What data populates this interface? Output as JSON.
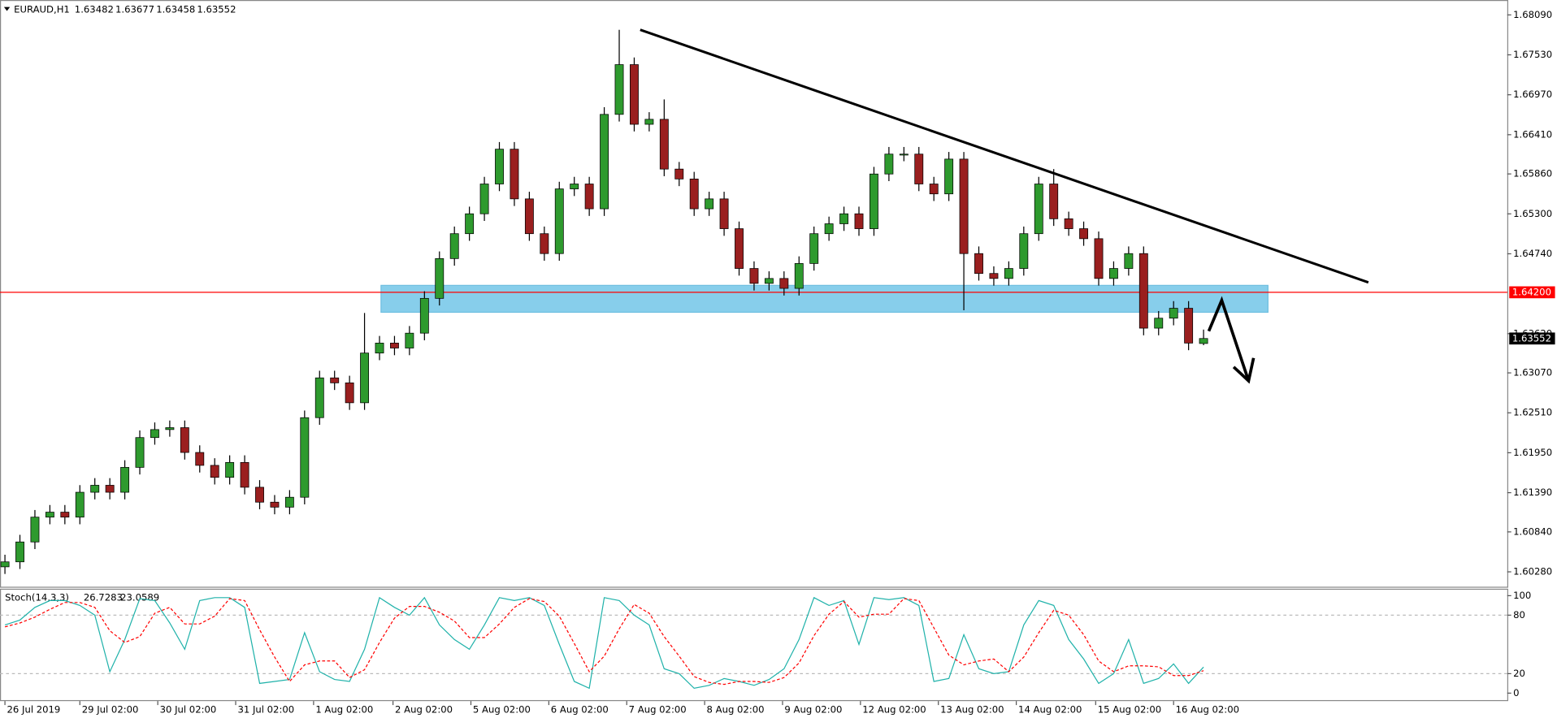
{
  "chart_data": [
    {
      "type": "candlestick",
      "title": "EURAUD,H1",
      "xlim": [
        -0.33,
        100.27
      ],
      "xticks": [
        {
          "value": 0,
          "label": "26 Jul 2019"
        },
        {
          "value": 5,
          "label": "29 Jul 02:00"
        },
        {
          "value": 10.2,
          "label": "30 Jul 02:00"
        },
        {
          "value": 15.4,
          "label": "31 Jul 02:00"
        },
        {
          "value": 20.6,
          "label": "1 Aug 02:00"
        },
        {
          "value": 25.9,
          "label": "2 Aug 02:00"
        },
        {
          "value": 31.1,
          "label": "5 Aug 02:00"
        },
        {
          "value": 36.3,
          "label": "6 Aug 02:00"
        },
        {
          "value": 41.5,
          "label": "7 Aug 02:00"
        },
        {
          "value": 46.7,
          "label": "8 Aug 02:00"
        },
        {
          "value": 51.9,
          "label": "9 Aug 02:00"
        },
        {
          "value": 57.1,
          "label": "12 Aug 02:00"
        },
        {
          "value": 62.3,
          "label": "13 Aug 02:00"
        },
        {
          "value": 67.5,
          "label": "14 Aug 02:00"
        },
        {
          "value": 72.8,
          "label": "15 Aug 02:00"
        },
        {
          "value": 78,
          "label": "16 Aug 02:00"
        }
      ],
      "ylim": [
        1.60071,
        1.68299
      ],
      "yticks": [
        {
          "value": 1.6809,
          "label": "1.68090"
        },
        {
          "value": 1.6753,
          "label": "1.67530"
        },
        {
          "value": 1.6697,
          "label": "1.66970"
        },
        {
          "value": 1.6641,
          "label": "1.66410"
        },
        {
          "value": 1.6586,
          "label": "1.65860"
        },
        {
          "value": 1.653,
          "label": "1.65300"
        },
        {
          "value": 1.6474,
          "label": "1.64740"
        },
        {
          "value": 1.6362,
          "label": "1.63620"
        },
        {
          "value": 1.6307,
          "label": "1.63070"
        },
        {
          "value": 1.6251,
          "label": "1.62510"
        },
        {
          "value": 1.6195,
          "label": "1.61950"
        },
        {
          "value": 1.6139,
          "label": "1.61390"
        },
        {
          "value": 1.6084,
          "label": "1.60840"
        },
        {
          "value": 1.6028,
          "label": "1.60280"
        }
      ],
      "open": [
        1.6035,
        1.6042,
        1.60699,
        1.61047,
        1.61117,
        1.61047,
        1.61396,
        1.61494,
        1.61396,
        1.61745,
        1.62163,
        1.62275,
        1.62302,
        1.61954,
        1.61773,
        1.61605,
        1.61814,
        1.61466,
        1.61257,
        1.61187,
        1.61326,
        1.62442,
        1.63,
        1.6293,
        1.62651,
        1.63348,
        1.63488,
        1.63418,
        1.63627,
        1.64115,
        1.64673,
        1.65022,
        1.65301,
        1.65719,
        1.66207,
        1.6551,
        1.65022,
        1.64743,
        1.6565,
        1.65719,
        1.65371,
        1.66695,
        1.67393,
        1.66556,
        1.66626,
        1.65928,
        1.65789,
        1.65371,
        1.6551,
        1.65092,
        1.64534,
        1.64325,
        1.64394,
        1.64255,
        1.64604,
        1.65022,
        1.65161,
        1.65301,
        1.65092,
        1.65859,
        1.66138,
        1.66138,
        1.65719,
        1.6558,
        1.66068,
        1.64743,
        1.64464,
        1.64394,
        1.64534,
        1.65022,
        1.65719,
        1.65231,
        1.65092,
        1.64952,
        1.64394,
        1.64534,
        1.64743,
        1.63697,
        1.63837,
        1.63976,
        1.63482
      ],
      "high": [
        1.6052,
        1.60799,
        1.61147,
        1.61217,
        1.61217,
        1.61496,
        1.61594,
        1.61594,
        1.61845,
        1.62263,
        1.62375,
        1.62402,
        1.62402,
        1.62054,
        1.61873,
        1.61914,
        1.61914,
        1.61566,
        1.61357,
        1.61426,
        1.62542,
        1.631,
        1.631,
        1.6303,
        1.6391,
        1.63588,
        1.63588,
        1.63727,
        1.64215,
        1.64773,
        1.65122,
        1.65401,
        1.65819,
        1.66307,
        1.66307,
        1.6561,
        1.65122,
        1.6575,
        1.65819,
        1.65819,
        1.66795,
        1.67881,
        1.67493,
        1.66726,
        1.66905,
        1.66028,
        1.65889,
        1.6561,
        1.6561,
        1.65192,
        1.64634,
        1.64494,
        1.64494,
        1.64704,
        1.65122,
        1.65261,
        1.65401,
        1.65401,
        1.65959,
        1.66238,
        1.66238,
        1.66238,
        1.65819,
        1.66168,
        1.66168,
        1.64843,
        1.64564,
        1.64634,
        1.65122,
        1.65819,
        1.65928,
        1.65331,
        1.65192,
        1.65052,
        1.64634,
        1.64843,
        1.64843,
        1.63937,
        1.64076,
        1.64076,
        1.63677
      ],
      "low": [
        1.6025,
        1.6032,
        1.60599,
        1.60947,
        1.60947,
        1.60947,
        1.61296,
        1.61296,
        1.61296,
        1.61645,
        1.62063,
        1.62175,
        1.61854,
        1.61673,
        1.61505,
        1.61505,
        1.61366,
        1.61157,
        1.61087,
        1.61087,
        1.61226,
        1.62342,
        1.6283,
        1.62551,
        1.62551,
        1.63248,
        1.63318,
        1.63318,
        1.63527,
        1.64015,
        1.64573,
        1.64922,
        1.65201,
        1.65619,
        1.6541,
        1.64922,
        1.64643,
        1.64643,
        1.6555,
        1.65271,
        1.65271,
        1.66595,
        1.66456,
        1.66456,
        1.65828,
        1.65689,
        1.65271,
        1.65271,
        1.64992,
        1.64434,
        1.64225,
        1.64225,
        1.64155,
        1.64155,
        1.64504,
        1.64922,
        1.65061,
        1.64992,
        1.64992,
        1.65759,
        1.66038,
        1.65619,
        1.6548,
        1.6548,
        1.63948,
        1.64364,
        1.64294,
        1.64294,
        1.64434,
        1.64922,
        1.65131,
        1.64992,
        1.64852,
        1.64294,
        1.64294,
        1.64434,
        1.63597,
        1.63597,
        1.63737,
        1.63388,
        1.63458
      ],
      "close": [
        1.6042,
        1.60699,
        1.61047,
        1.61117,
        1.61047,
        1.61396,
        1.61494,
        1.61396,
        1.61745,
        1.62163,
        1.62275,
        1.62302,
        1.61954,
        1.61773,
        1.61605,
        1.61814,
        1.61466,
        1.61257,
        1.61187,
        1.61326,
        1.62442,
        1.63,
        1.6293,
        1.62651,
        1.63348,
        1.63488,
        1.63418,
        1.63627,
        1.64115,
        1.64673,
        1.65022,
        1.65301,
        1.65719,
        1.66207,
        1.6551,
        1.65022,
        1.64743,
        1.6565,
        1.65719,
        1.65371,
        1.66695,
        1.67393,
        1.66556,
        1.66626,
        1.65928,
        1.65789,
        1.65371,
        1.6551,
        1.65092,
        1.64534,
        1.64325,
        1.64394,
        1.64255,
        1.64604,
        1.65022,
        1.65161,
        1.65301,
        1.65092,
        1.65859,
        1.66138,
        1.66138,
        1.65719,
        1.6558,
        1.66068,
        1.64743,
        1.64464,
        1.64394,
        1.64534,
        1.65022,
        1.65719,
        1.65231,
        1.65092,
        1.64952,
        1.64394,
        1.64534,
        1.64743,
        1.63697,
        1.63837,
        1.63976,
        1.63488,
        1.63552
      ],
      "up_color": "#2e9a2e",
      "down_color": "#9a1f1f",
      "hline": {
        "value": 1.642,
        "label": "1.64200",
        "color": "#ff0000"
      },
      "trendline": {
        "x": [
          42.4,
          91
        ],
        "y": [
          1.67881,
          1.64339
        ],
        "color": "#000000"
      },
      "zone": {
        "x": [
          25.1,
          84.3
        ],
        "y": [
          1.6392,
          1.64297
        ],
        "color": "#87ceeb"
      }
    },
    {
      "type": "line",
      "title": "Stoch(14,3,3)",
      "xlim": [
        -0.33,
        100.27
      ],
      "ylim": [
        0,
        100
      ],
      "yticks": [
        0,
        20,
        80,
        100
      ],
      "series": [
        {
          "color": "#20b2aa",
          "values": [
            70,
            75,
            88,
            95,
            95,
            90,
            80,
            22,
            55,
            97,
            95,
            72,
            45,
            95,
            98,
            98,
            88,
            10,
            12,
            14,
            62,
            22,
            14,
            12,
            45,
            98,
            88,
            80,
            98,
            70,
            55,
            45,
            70,
            98,
            95,
            98,
            90,
            50,
            12,
            5,
            98,
            95,
            80,
            70,
            25,
            20,
            5,
            8,
            15,
            12,
            8,
            14,
            25,
            55,
            98,
            90,
            95,
            50,
            98,
            96,
            98,
            90,
            12,
            15,
            60,
            25,
            20,
            22,
            70,
            95,
            90,
            55,
            35,
            10,
            20,
            55,
            10,
            15,
            30,
            10,
            26.7283
          ]
        },
        {
          "color": "#ff0000",
          "dash": true,
          "values": [
            68,
            72,
            78,
            86,
            93,
            93,
            88,
            64,
            52,
            58,
            82,
            88,
            71,
            71,
            79,
            97,
            95,
            65,
            37,
            12,
            29,
            33,
            33,
            16,
            24,
            52,
            77,
            89,
            89,
            83,
            74,
            57,
            57,
            71,
            88,
            97,
            94,
            79,
            51,
            22,
            38,
            66,
            91,
            82,
            58,
            38,
            17,
            11,
            9,
            12,
            12,
            11,
            16,
            31,
            59,
            81,
            94,
            78,
            81,
            81,
            97,
            95,
            67,
            39,
            29,
            33,
            35,
            22,
            37,
            62,
            85,
            80,
            60,
            33,
            22,
            28,
            28,
            27,
            18,
            18,
            23.0589
          ]
        }
      ]
    }
  ]
}
